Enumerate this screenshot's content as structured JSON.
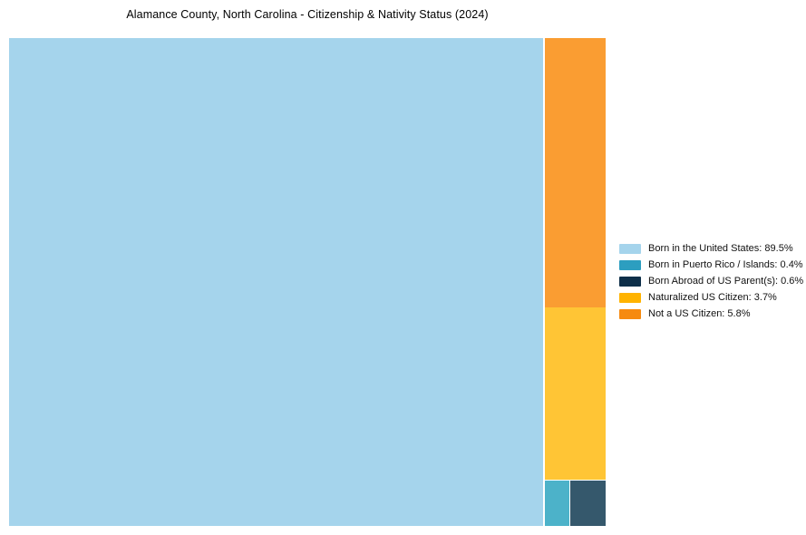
{
  "title": "Alamance County, North Carolina - Citizenship & Nativity Status (2024)",
  "chart_data": {
    "type": "treemap",
    "title": "Alamance County, North Carolina - Citizenship & Nativity Status (2024)",
    "unit": "%",
    "legend_position": "right",
    "items": [
      {
        "label": "Born in the United States",
        "value": 89.5,
        "legend_label": "Born in the United States: 89.5%",
        "fill": "#A5D4EC",
        "legend_color": "#A5D4EC"
      },
      {
        "label": "Born in Puerto Rico / Islands",
        "value": 0.4,
        "legend_label": "Born in Puerto Rico / Islands: 0.4%",
        "fill": "#4CB2C9",
        "legend_color": "#2C9EC0"
      },
      {
        "label": "Born Abroad of US Parent(s)",
        "value": 0.6,
        "legend_label": "Born Abroad of US Parent(s): 0.6%",
        "fill": "#35586C",
        "legend_color": "#0E2F49"
      },
      {
        "label": "Naturalized US Citizen",
        "value": 3.7,
        "legend_label": "Naturalized US Citizen: 3.7%",
        "fill": "#FFC535",
        "legend_color": "#FFB300"
      },
      {
        "label": "Not a US Citizen",
        "value": 5.8,
        "legend_label": "Not a US Citizen: 5.8%",
        "fill": "#FA9D32",
        "legend_color": "#F68A10"
      }
    ]
  }
}
